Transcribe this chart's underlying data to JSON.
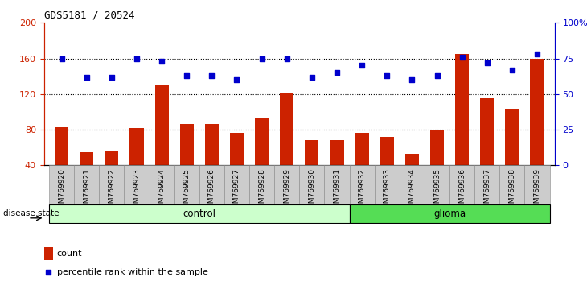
{
  "title": "GDS5181 / 20524",
  "samples": [
    "GSM769920",
    "GSM769921",
    "GSM769922",
    "GSM769923",
    "GSM769924",
    "GSM769925",
    "GSM769926",
    "GSM769927",
    "GSM769928",
    "GSM769929",
    "GSM769930",
    "GSM769931",
    "GSM769932",
    "GSM769933",
    "GSM769934",
    "GSM769935",
    "GSM769936",
    "GSM769937",
    "GSM769938",
    "GSM769939"
  ],
  "counts": [
    83,
    55,
    57,
    82,
    130,
    86,
    86,
    76,
    93,
    122,
    68,
    68,
    76,
    72,
    53,
    80,
    165,
    115,
    103,
    160
  ],
  "percentile_ranks": [
    75,
    62,
    62,
    75,
    73,
    63,
    63,
    60,
    75,
    75,
    62,
    65,
    70,
    63,
    60,
    63,
    76,
    72,
    67,
    78
  ],
  "control_count": 12,
  "glioma_count": 8,
  "ylim_left": [
    40,
    200
  ],
  "ylim_right": [
    0,
    100
  ],
  "yticks_left": [
    40,
    80,
    120,
    160,
    200
  ],
  "yticks_right": [
    0,
    25,
    50,
    75,
    100
  ],
  "bar_color": "#cc2200",
  "dot_color": "#0000cc",
  "control_color": "#ccffcc",
  "glioma_color": "#55dd55",
  "title_color": "#000000",
  "left_axis_color": "#cc2200",
  "right_axis_color": "#0000cc",
  "legend_count_label": "count",
  "legend_pct_label": "percentile rank within the sample",
  "control_label": "control",
  "glioma_label": "glioma",
  "disease_state_label": "disease state"
}
